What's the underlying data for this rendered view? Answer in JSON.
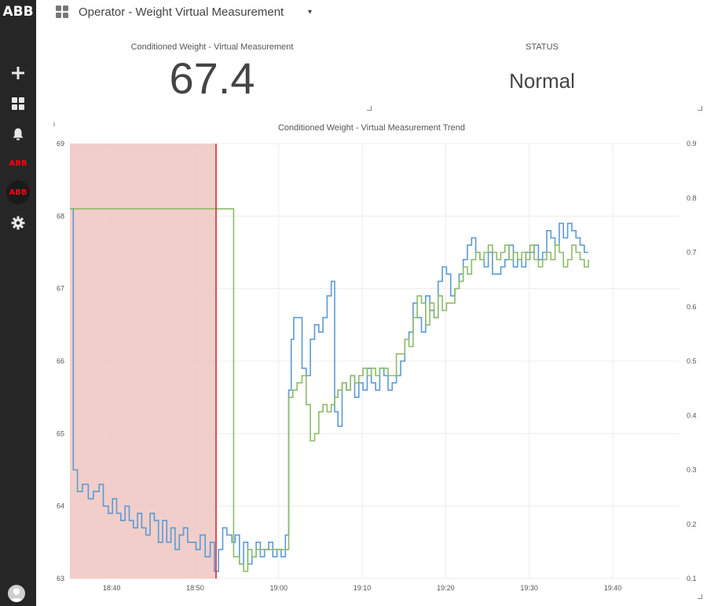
{
  "sidebar": {
    "logo": "ABB",
    "items": [
      {
        "name": "add",
        "icon": "plus-icon"
      },
      {
        "name": "dashboards",
        "icon": "grid-icon"
      },
      {
        "name": "alarms",
        "icon": "bell-icon"
      },
      {
        "name": "abb-app-1",
        "label": "ABB"
      },
      {
        "name": "abb-app-2",
        "label": "ABB"
      },
      {
        "name": "settings",
        "icon": "gear-icon"
      }
    ]
  },
  "header": {
    "title": "Operator - Weight Virtual Measurement",
    "caret": "▾"
  },
  "kpi": {
    "label": "Conditioned Weight - Virtual Measurement",
    "value": "67.4"
  },
  "status": {
    "label": "STATUS",
    "value": "Normal"
  },
  "info_mark": "i",
  "chart_data": {
    "type": "line",
    "title": "Conditioned Weight - Virtual Measurement Trend",
    "x_ticks": [
      "18:40",
      "18:50",
      "19:00",
      "19:10",
      "19:20",
      "19:30",
      "19:40"
    ],
    "y_left_ticks": [
      "69",
      "68",
      "67",
      "66",
      "65",
      "64",
      "63"
    ],
    "y_right_ticks": [
      "0.9",
      "0.8",
      "0.7",
      "0.6",
      "0.5",
      "0.4",
      "0.3",
      "0.2",
      "0.1"
    ],
    "ylim_left": [
      63,
      69
    ],
    "ylim_right": [
      0.1,
      0.9
    ],
    "xlim": [
      "18:35",
      "19:48"
    ],
    "highlight_band": {
      "from": "18:35",
      "to": "18:52.5",
      "color": "#f0c9c4"
    },
    "marker_line": {
      "at": "18:52.5",
      "color": "#d32f2f"
    },
    "series": [
      {
        "color": "#5b9bd5",
        "axis": "left",
        "points": [
          [
            0,
            68.1
          ],
          [
            0.4,
            64.5
          ],
          [
            0.9,
            64.2
          ],
          [
            1.5,
            64.3
          ],
          [
            2.2,
            64.1
          ],
          [
            2.8,
            64.2
          ],
          [
            3.5,
            64.3
          ],
          [
            4.0,
            64.0
          ],
          [
            4.6,
            63.9
          ],
          [
            5.1,
            64.1
          ],
          [
            5.6,
            63.9
          ],
          [
            6.1,
            63.8
          ],
          [
            6.6,
            64.0
          ],
          [
            7.1,
            63.8
          ],
          [
            7.6,
            63.7
          ],
          [
            8.1,
            63.9
          ],
          [
            8.6,
            63.7
          ],
          [
            9.1,
            63.6
          ],
          [
            9.6,
            63.9
          ],
          [
            10.1,
            63.8
          ],
          [
            10.6,
            63.5
          ],
          [
            11.1,
            63.8
          ],
          [
            11.6,
            63.5
          ],
          [
            12.1,
            63.7
          ],
          [
            12.6,
            63.4
          ],
          [
            13.1,
            63.6
          ],
          [
            13.6,
            63.7
          ],
          [
            14.1,
            63.5
          ],
          [
            14.6,
            63.5
          ],
          [
            15.1,
            63.4
          ],
          [
            15.6,
            63.6
          ],
          [
            16.2,
            63.3
          ],
          [
            16.8,
            63.5
          ],
          [
            17.3,
            63.1
          ],
          [
            17.8,
            63.4
          ],
          [
            18.3,
            63.7
          ],
          [
            18.8,
            63.6
          ],
          [
            19.4,
            63.5
          ],
          [
            19.8,
            63.6
          ],
          [
            20.3,
            63.2
          ],
          [
            20.8,
            63.5
          ],
          [
            21.3,
            63.2
          ],
          [
            21.8,
            63.3
          ],
          [
            22.3,
            63.5
          ],
          [
            22.8,
            63.3
          ],
          [
            23.3,
            63.4
          ],
          [
            23.8,
            63.5
          ],
          [
            24.3,
            63.3
          ],
          [
            24.8,
            63.4
          ],
          [
            25.3,
            63.3
          ],
          [
            25.8,
            63.6
          ],
          [
            26.2,
            65.6
          ],
          [
            26.5,
            66.3
          ],
          [
            26.8,
            66.6
          ],
          [
            27.4,
            66.6
          ],
          [
            27.8,
            65.9
          ],
          [
            28.3,
            65.8
          ],
          [
            28.8,
            66.3
          ],
          [
            29.3,
            66.5
          ],
          [
            29.8,
            66.4
          ],
          [
            30.3,
            66.6
          ],
          [
            30.8,
            66.9
          ],
          [
            31.3,
            67.1
          ],
          [
            31.7,
            65.3
          ],
          [
            32.1,
            65.1
          ],
          [
            32.6,
            65.7
          ],
          [
            33.1,
            65.6
          ],
          [
            33.6,
            65.8
          ],
          [
            34.1,
            65.5
          ],
          [
            34.6,
            65.7
          ],
          [
            35.1,
            65.6
          ],
          [
            35.6,
            65.9
          ],
          [
            36.1,
            65.7
          ],
          [
            36.6,
            65.6
          ],
          [
            37.1,
            65.9
          ],
          [
            37.6,
            65.8
          ],
          [
            38.1,
            65.6
          ],
          [
            38.6,
            65.7
          ],
          [
            39.1,
            65.8
          ],
          [
            39.6,
            66.0
          ],
          [
            40.1,
            66.3
          ],
          [
            40.6,
            66.4
          ],
          [
            41.1,
            66.8
          ],
          [
            41.6,
            66.6
          ],
          [
            42.1,
            66.4
          ],
          [
            42.6,
            66.9
          ],
          [
            43.1,
            66.7
          ],
          [
            43.6,
            66.6
          ],
          [
            44.1,
            67.1
          ],
          [
            44.6,
            67.3
          ],
          [
            45.1,
            67.2
          ],
          [
            45.6,
            66.9
          ],
          [
            46.1,
            67.0
          ],
          [
            46.6,
            67.2
          ],
          [
            47.1,
            67.4
          ],
          [
            47.6,
            67.6
          ],
          [
            48.1,
            67.7
          ],
          [
            48.6,
            67.5
          ],
          [
            49.1,
            67.4
          ],
          [
            49.6,
            67.3
          ],
          [
            50.1,
            67.5
          ],
          [
            50.6,
            67.2
          ],
          [
            51.1,
            67.2
          ],
          [
            51.6,
            67.3
          ],
          [
            52.1,
            67.4
          ],
          [
            52.6,
            67.6
          ],
          [
            53.1,
            67.3
          ],
          [
            53.6,
            67.4
          ],
          [
            54.1,
            67.3
          ],
          [
            54.6,
            67.5
          ],
          [
            55.1,
            67.5
          ],
          [
            55.6,
            67.6
          ],
          [
            56.1,
            67.4
          ],
          [
            56.6,
            67.5
          ],
          [
            57.1,
            67.8
          ],
          [
            57.6,
            67.7
          ],
          [
            58.1,
            67.6
          ],
          [
            58.6,
            67.9
          ],
          [
            59.1,
            67.7
          ],
          [
            59.6,
            67.9
          ],
          [
            60.1,
            67.8
          ],
          [
            60.6,
            67.7
          ],
          [
            61.1,
            67.6
          ],
          [
            61.6,
            67.5
          ],
          [
            62.1,
            67.5
          ]
        ]
      },
      {
        "color": "#8dbb6a",
        "axis": "left",
        "points": [
          [
            0,
            68.1
          ],
          [
            19.4,
            68.1
          ],
          [
            19.6,
            63.3
          ],
          [
            20.3,
            63.2
          ],
          [
            20.8,
            63.1
          ],
          [
            21.3,
            63.4
          ],
          [
            21.8,
            63.3
          ],
          [
            22.3,
            63.4
          ],
          [
            23.3,
            63.4
          ],
          [
            24.3,
            63.4
          ],
          [
            25.8,
            63.4
          ],
          [
            26.2,
            65.5
          ],
          [
            26.7,
            65.6
          ],
          [
            27.2,
            65.7
          ],
          [
            27.8,
            65.8
          ],
          [
            28.3,
            65.4
          ],
          [
            28.8,
            64.9
          ],
          [
            29.3,
            65.0
          ],
          [
            29.8,
            65.3
          ],
          [
            30.3,
            65.4
          ],
          [
            30.8,
            65.3
          ],
          [
            31.3,
            65.4
          ],
          [
            31.7,
            65.5
          ],
          [
            32.1,
            65.6
          ],
          [
            32.6,
            65.7
          ],
          [
            33.1,
            65.6
          ],
          [
            33.6,
            65.8
          ],
          [
            34.1,
            65.7
          ],
          [
            34.6,
            65.8
          ],
          [
            35.1,
            65.9
          ],
          [
            35.6,
            65.8
          ],
          [
            36.1,
            65.9
          ],
          [
            36.6,
            65.8
          ],
          [
            37.1,
            65.9
          ],
          [
            38.1,
            65.8
          ],
          [
            39.1,
            66.1
          ],
          [
            40.1,
            66.3
          ],
          [
            40.6,
            66.2
          ],
          [
            41.1,
            66.6
          ],
          [
            41.6,
            66.9
          ],
          [
            42.1,
            66.8
          ],
          [
            42.6,
            66.5
          ],
          [
            43.1,
            66.8
          ],
          [
            43.6,
            66.6
          ],
          [
            44.1,
            66.9
          ],
          [
            44.6,
            66.7
          ],
          [
            45.1,
            66.8
          ],
          [
            46.1,
            67.0
          ],
          [
            46.6,
            67.1
          ],
          [
            47.1,
            67.3
          ],
          [
            47.6,
            67.2
          ],
          [
            48.1,
            67.4
          ],
          [
            48.6,
            67.5
          ],
          [
            49.1,
            67.4
          ],
          [
            49.6,
            67.5
          ],
          [
            50.1,
            67.6
          ],
          [
            50.6,
            67.5
          ],
          [
            51.1,
            67.4
          ],
          [
            51.6,
            67.5
          ],
          [
            52.1,
            67.6
          ],
          [
            52.6,
            67.4
          ],
          [
            53.1,
            67.5
          ],
          [
            53.6,
            67.4
          ],
          [
            54.1,
            67.5
          ],
          [
            54.6,
            67.4
          ],
          [
            55.1,
            67.6
          ],
          [
            55.6,
            67.4
          ],
          [
            56.1,
            67.3
          ],
          [
            56.6,
            67.4
          ],
          [
            57.1,
            67.5
          ],
          [
            57.6,
            67.4
          ],
          [
            58.1,
            67.6
          ],
          [
            58.6,
            67.5
          ],
          [
            59.1,
            67.3
          ],
          [
            59.6,
            67.4
          ],
          [
            60.1,
            67.6
          ],
          [
            60.6,
            67.5
          ],
          [
            61.1,
            67.4
          ],
          [
            61.6,
            67.3
          ],
          [
            62.1,
            67.4
          ]
        ]
      }
    ]
  }
}
